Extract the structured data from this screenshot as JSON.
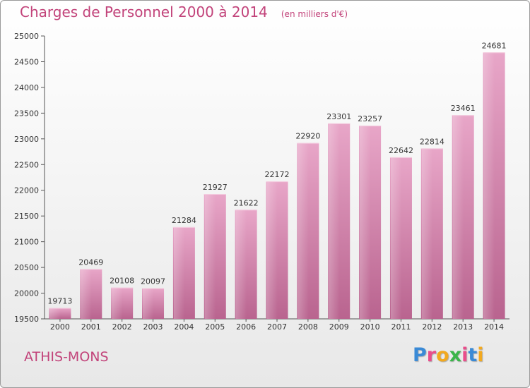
{
  "header": {
    "title": "Charges de Personnel 2000 à 2014",
    "unit": "(en milliers d'€)"
  },
  "footer": {
    "city": "ATHIS-MONS",
    "logo_text": "Proxiti",
    "logo_colors": [
      "#3a8ad6",
      "#e94d8b",
      "#f2a91f",
      "#3ab54a",
      "#e94d8b",
      "#3a8ad6",
      "#f2a91f"
    ]
  },
  "chart_data": {
    "type": "bar",
    "title": "Charges de Personnel 2000 à 2014",
    "subtitle": "(en milliers d'€)",
    "xlabel": "",
    "ylabel": "",
    "categories": [
      "2000",
      "2001",
      "2002",
      "2003",
      "2004",
      "2005",
      "2006",
      "2007",
      "2008",
      "2009",
      "2010",
      "2011",
      "2012",
      "2013",
      "2014"
    ],
    "values": [
      19713,
      20469,
      20108,
      20097,
      21284,
      21927,
      21622,
      22172,
      22920,
      23301,
      23257,
      22642,
      22814,
      23461,
      24681
    ],
    "ylim": [
      19500,
      25000
    ],
    "yticks": [
      19500,
      20000,
      20500,
      21000,
      21500,
      22000,
      22500,
      23000,
      23500,
      24000,
      24500,
      25000
    ],
    "bar_color": "#d98ab2",
    "grid": false,
    "legend": "none"
  }
}
